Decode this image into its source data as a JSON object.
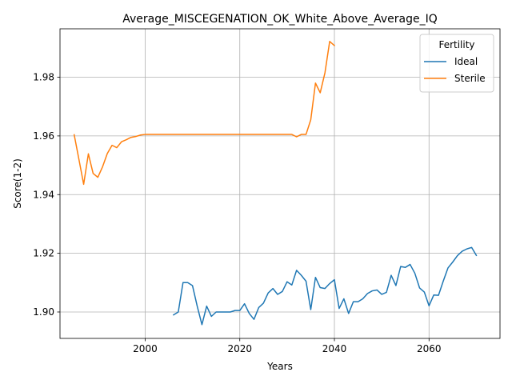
{
  "chart_data": {
    "type": "line",
    "title": "Average_MISCEGENATION_OK_White_Above_Average_IQ",
    "xlabel": "Years",
    "ylabel": "Score(1-2)",
    "xlim": [
      1982,
      2075
    ],
    "ylim": [
      1.891,
      1.9965
    ],
    "xticks": [
      2000,
      2020,
      2040,
      2060
    ],
    "yticks": [
      1.9,
      1.92,
      1.94,
      1.96,
      1.98
    ],
    "xtick_labels": [
      "2000",
      "2020",
      "2040",
      "2060"
    ],
    "ytick_labels": [
      "1.90",
      "1.92",
      "1.94",
      "1.96",
      "1.98"
    ],
    "grid": true,
    "legend": {
      "title": "Fertility",
      "position": "upper right"
    },
    "series": [
      {
        "name": "Ideal",
        "color": "#1f77b4",
        "x": [
          2006,
          2007,
          2008,
          2009,
          2010,
          2011,
          2012,
          2013,
          2014,
          2015,
          2016,
          2017,
          2018,
          2019,
          2020,
          2021,
          2022,
          2023,
          2024,
          2025,
          2026,
          2027,
          2028,
          2029,
          2030,
          2031,
          2032,
          2033,
          2034,
          2035,
          2036,
          2037,
          2038,
          2039,
          2040,
          2041,
          2042,
          2043,
          2044,
          2045,
          2046,
          2047,
          2048,
          2049,
          2050,
          2051,
          2052,
          2053,
          2054,
          2055,
          2056,
          2057,
          2058,
          2059,
          2060,
          2061,
          2062,
          2063,
          2064,
          2065,
          2066,
          2067,
          2068,
          2069,
          2070
        ],
        "y": [
          1.899,
          1.9,
          1.91,
          1.91,
          1.909,
          1.902,
          1.8957,
          1.902,
          1.8985,
          1.9,
          1.9,
          1.9,
          1.9,
          1.9005,
          1.9005,
          1.9028,
          1.8995,
          1.8975,
          1.9015,
          1.903,
          1.9065,
          1.908,
          1.906,
          1.907,
          1.9103,
          1.9092,
          1.9142,
          1.9125,
          1.9105,
          1.9008,
          1.9118,
          1.9083,
          1.908,
          1.9097,
          1.911,
          1.9012,
          1.9045,
          1.8995,
          1.9035,
          1.9035,
          1.9045,
          1.9063,
          1.9072,
          1.9075,
          1.906,
          1.9067,
          1.9125,
          1.909,
          1.9155,
          1.9152,
          1.9162,
          1.9132,
          1.9082,
          1.9068,
          1.9021,
          1.9058,
          1.9057,
          1.9105,
          1.915,
          1.917,
          1.9192,
          1.9207,
          1.9215,
          1.922,
          1.9193
        ]
      },
      {
        "name": "Sterile",
        "color": "#ff7f0e",
        "x": [
          1985,
          1986,
          1987,
          1988,
          1989,
          1990,
          1991,
          1992,
          1993,
          1994,
          1995,
          1996,
          1997,
          1998,
          1999,
          2000,
          2001,
          2002,
          2003,
          2004,
          2005,
          2006,
          2007,
          2008,
          2009,
          2010,
          2011,
          2012,
          2013,
          2014,
          2015,
          2016,
          2017,
          2018,
          2019,
          2020,
          2021,
          2022,
          2023,
          2024,
          2025,
          2026,
          2027,
          2028,
          2029,
          2030,
          2031,
          2032,
          2033,
          2034,
          2035,
          2036,
          2037,
          2038,
          2039,
          2040
        ],
        "y": [
          1.9604,
          1.952,
          1.9435,
          1.9539,
          1.9472,
          1.9459,
          1.9495,
          1.954,
          1.9568,
          1.956,
          1.958,
          1.9587,
          1.9595,
          1.9598,
          1.9603,
          1.9605,
          1.9605,
          1.9605,
          1.9605,
          1.9605,
          1.9605,
          1.9605,
          1.9605,
          1.9605,
          1.9605,
          1.9605,
          1.9605,
          1.9605,
          1.9605,
          1.9605,
          1.9605,
          1.9605,
          1.9605,
          1.9605,
          1.9605,
          1.9605,
          1.9605,
          1.9605,
          1.9605,
          1.9605,
          1.9605,
          1.9605,
          1.9605,
          1.9605,
          1.9605,
          1.9605,
          1.9605,
          1.9597,
          1.9605,
          1.9605,
          1.9655,
          1.978,
          1.9747,
          1.9815,
          1.9922,
          1.9908
        ]
      }
    ]
  }
}
